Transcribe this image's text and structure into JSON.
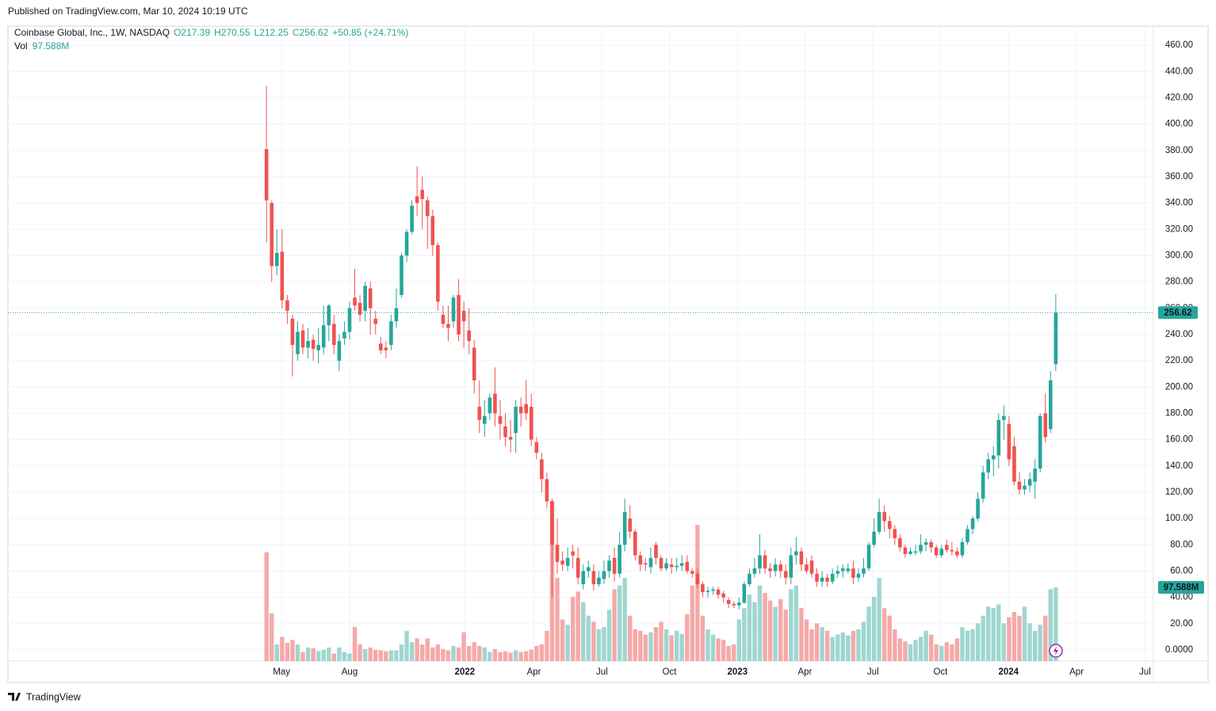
{
  "published": "Published on TradingView.com, Mar 10, 2024 10:19 UTC",
  "brand": "TradingView",
  "chart_data": {
    "type": "candlestick",
    "header": {
      "symbol": "Coinbase Global, Inc., 1W, NASDAQ",
      "o": "O217.39",
      "h": "H270.55",
      "l": "L212.25",
      "c": "C256.62",
      "change": "+50.85 (+24.71%)",
      "vol_label": "Vol"
    },
    "colors": {
      "up": "#26a69a",
      "down": "#ef5350",
      "up_volume": "#9fd6d0",
      "down_volume": "#f5a9a8"
    },
    "grid": true,
    "ylim": [
      -8.44,
      474.5
    ],
    "yticks": [
      {
        "value": 0,
        "label": "0.0000"
      },
      {
        "value": 20,
        "label": "20.00"
      },
      {
        "value": 40,
        "label": "40.00"
      },
      {
        "value": 60,
        "label": "60.00"
      },
      {
        "value": 80,
        "label": "80.00"
      },
      {
        "value": 100,
        "label": "100.00"
      },
      {
        "value": 120,
        "label": "120.00"
      },
      {
        "value": 140,
        "label": "140.00"
      },
      {
        "value": 160,
        "label": "160.00"
      },
      {
        "value": 180,
        "label": "180.00"
      },
      {
        "value": 200,
        "label": "200.00"
      },
      {
        "value": 220,
        "label": "220.00"
      },
      {
        "value": 240,
        "label": "240.00"
      },
      {
        "value": 260,
        "label": "260.00"
      },
      {
        "value": 280,
        "label": "280.00"
      },
      {
        "value": 300,
        "label": "300.00"
      },
      {
        "value": 320,
        "label": "320.00"
      },
      {
        "value": 340,
        "label": "340.00"
      },
      {
        "value": 360,
        "label": "360.00"
      },
      {
        "value": 380,
        "label": "380.00"
      },
      {
        "value": 400,
        "label": "400.00"
      },
      {
        "value": 420,
        "label": "420.00"
      },
      {
        "value": 440,
        "label": "440.00"
      },
      {
        "value": 460,
        "label": "460.00"
      }
    ],
    "xlim": [
      -49.8,
      170.8
    ],
    "xticks": [
      {
        "value": 2.9,
        "label": "May"
      },
      {
        "value": 16.0,
        "label": "Aug"
      },
      {
        "value": 38.2,
        "label": "2022"
      },
      {
        "value": 51.5,
        "label": "Apr"
      },
      {
        "value": 64.6,
        "label": "Jul"
      },
      {
        "value": 77.6,
        "label": "Oct"
      },
      {
        "value": 90.7,
        "label": "2023"
      },
      {
        "value": 103.7,
        "label": "Apr"
      },
      {
        "value": 116.8,
        "label": "Jul"
      },
      {
        "value": 129.8,
        "label": "Oct"
      },
      {
        "value": 142.9,
        "label": "2024"
      },
      {
        "value": 156.0,
        "label": "Apr"
      },
      {
        "value": 169.2,
        "label": "Jul"
      }
    ],
    "candles": {
      "open": [
        381,
        340,
        292,
        303,
        266,
        252,
        225,
        243,
        230,
        236,
        228,
        230,
        247,
        248,
        220,
        237,
        242,
        268,
        264,
        258,
        275,
        252,
        233,
        230,
        232,
        250,
        270,
        300,
        318,
        345,
        350,
        342,
        330,
        308,
        255,
        248,
        250,
        270,
        258,
        243,
        230,
        185,
        172,
        180,
        195,
        178,
        170,
        162,
        165,
        185,
        187,
        185,
        158,
        145,
        130,
        113,
        80,
        68,
        64,
        75,
        70,
        50,
        60,
        60,
        50,
        54,
        60,
        70,
        58,
        80,
        100,
        90,
        72,
        66,
        63,
        80,
        70,
        62,
        65,
        63,
        64,
        67,
        60,
        58,
        50,
        44,
        45,
        46,
        43,
        38,
        35,
        34,
        36,
        50,
        58,
        62,
        72,
        62,
        60,
        65,
        60,
        55,
        72,
        75,
        65,
        68,
        58,
        52,
        55,
        52,
        58,
        60,
        60,
        62,
        55,
        58,
        62,
        80,
        90,
        105,
        98,
        92,
        85,
        78,
        73,
        74,
        75,
        80,
        82,
        78,
        72,
        80,
        76,
        75,
        72,
        82,
        92,
        100,
        115,
        135,
        145,
        148,
        175,
        172,
        155,
        128,
        122,
        125,
        128,
        138,
        180,
        168,
        217.39
      ],
      "high": [
        429,
        342,
        320,
        320,
        270,
        255,
        250,
        248,
        245,
        240,
        245,
        262,
        263,
        255,
        240,
        250,
        265,
        290,
        270,
        280,
        280,
        258,
        238,
        235,
        255,
        275,
        302,
        320,
        342,
        368,
        360,
        345,
        335,
        310,
        262,
        262,
        270,
        282,
        265,
        260,
        236,
        205,
        190,
        195,
        215,
        190,
        180,
        175,
        190,
        192,
        205,
        195,
        162,
        150,
        135,
        115,
        100,
        75,
        78,
        80,
        78,
        65,
        68,
        65,
        60,
        68,
        72,
        78,
        90,
        115,
        110,
        92,
        75,
        70,
        78,
        82,
        72,
        70,
        70,
        70,
        72,
        72,
        62,
        62,
        52,
        48,
        48,
        48,
        45,
        40,
        37,
        40,
        52,
        62,
        70,
        88,
        76,
        66,
        70,
        68,
        65,
        78,
        86,
        78,
        70,
        72,
        62,
        60,
        58,
        62,
        64,
        65,
        66,
        68,
        62,
        70,
        82,
        100,
        115,
        110,
        102,
        95,
        88,
        80,
        78,
        80,
        88,
        85,
        84,
        80,
        80,
        84,
        82,
        78,
        85,
        95,
        102,
        120,
        140,
        150,
        155,
        180,
        186,
        178,
        162,
        135,
        130,
        135,
        145,
        180,
        195,
        212,
        270.55
      ],
      "low": [
        310,
        280,
        285,
        260,
        248,
        208,
        220,
        225,
        222,
        220,
        218,
        225,
        235,
        225,
        212,
        232,
        236,
        258,
        250,
        250,
        240,
        240,
        225,
        222,
        228,
        245,
        268,
        295,
        316,
        330,
        320,
        305,
        300,
        258,
        245,
        235,
        245,
        235,
        230,
        225,
        195,
        165,
        162,
        175,
        170,
        160,
        155,
        150,
        150,
        170,
        175,
        155,
        145,
        120,
        108,
        40,
        58,
        60,
        60,
        62,
        50,
        46,
        55,
        45,
        48,
        50,
        55,
        52,
        55,
        75,
        85,
        68,
        60,
        60,
        58,
        65,
        60,
        60,
        58,
        60,
        60,
        58,
        55,
        47,
        40,
        40,
        42,
        39,
        36,
        32,
        32,
        31,
        35,
        48,
        55,
        58,
        58,
        55,
        56,
        55,
        50,
        50,
        65,
        60,
        58,
        55,
        48,
        48,
        48,
        50,
        55,
        55,
        58,
        50,
        52,
        55,
        60,
        78,
        88,
        90,
        85,
        80,
        75,
        70,
        72,
        72,
        73,
        75,
        74,
        70,
        70,
        74,
        72,
        70,
        70,
        80,
        88,
        98,
        112,
        130,
        132,
        138,
        160,
        140,
        125,
        118,
        118,
        120,
        115,
        135,
        158,
        165,
        212.25
      ],
      "close": [
        342,
        292,
        302,
        266,
        258,
        232,
        242,
        230,
        235,
        229,
        232,
        247,
        262,
        232,
        235,
        242,
        260,
        262,
        255,
        277,
        260,
        248,
        228,
        228,
        250,
        260,
        300,
        318,
        338,
        340,
        343,
        330,
        308,
        265,
        248,
        245,
        268,
        240,
        250,
        235,
        205,
        175,
        178,
        192,
        180,
        172,
        162,
        160,
        185,
        180,
        180,
        160,
        150,
        130,
        113,
        80,
        67,
        65,
        70,
        72,
        55,
        60,
        63,
        50,
        55,
        60,
        68,
        58,
        80,
        105,
        90,
        72,
        65,
        65,
        70,
        70,
        62,
        66,
        63,
        64,
        66,
        60,
        58,
        50,
        44,
        45,
        46,
        42,
        40,
        35,
        34,
        36,
        50,
        58,
        62,
        72,
        62,
        60,
        65,
        60,
        55,
        72,
        75,
        65,
        60,
        58,
        52,
        55,
        52,
        58,
        60,
        62,
        62,
        55,
        58,
        62,
        80,
        90,
        105,
        98,
        92,
        85,
        78,
        73,
        75,
        75,
        80,
        82,
        78,
        72,
        77,
        76,
        75,
        72,
        82,
        92,
        100,
        115,
        135,
        145,
        148,
        175,
        178,
        145,
        128,
        122,
        125,
        130,
        138,
        178,
        162,
        205,
        256.62
      ]
    },
    "volume": {
      "vlim": [
        0,
        840
      ],
      "values": [
        144,
        63,
        22,
        32,
        24,
        28,
        22,
        12,
        18,
        17,
        13,
        15,
        18,
        10,
        18,
        12,
        10,
        45,
        22,
        16,
        18,
        15,
        14,
        13,
        14,
        14,
        22,
        40,
        25,
        30,
        22,
        30,
        18,
        22,
        16,
        14,
        20,
        18,
        38,
        20,
        25,
        20,
        18,
        12,
        16,
        12,
        13,
        11,
        14,
        12,
        13,
        15,
        20,
        22,
        40,
        212,
        110,
        55,
        48,
        85,
        92,
        78,
        60,
        52,
        42,
        45,
        68,
        95,
        100,
        110,
        60,
        42,
        40,
        35,
        38,
        45,
        52,
        42,
        34,
        40,
        36,
        62,
        100,
        180,
        60,
        42,
        35,
        30,
        28,
        20,
        22,
        55,
        70,
        88,
        78,
        100,
        90,
        80,
        72,
        82,
        68,
        95,
        100,
        70,
        55,
        42,
        50,
        45,
        40,
        32,
        35,
        38,
        34,
        40,
        42,
        52,
        72,
        85,
        110,
        70,
        60,
        42,
        30,
        26,
        22,
        28,
        32,
        40,
        35,
        22,
        20,
        25,
        22,
        30,
        45,
        40,
        42,
        50,
        60,
        72,
        70,
        75,
        50,
        58,
        65,
        60,
        72,
        50,
        40,
        48,
        60,
        95,
        97.588
      ],
      "last_value_label": "97.588M"
    }
  }
}
